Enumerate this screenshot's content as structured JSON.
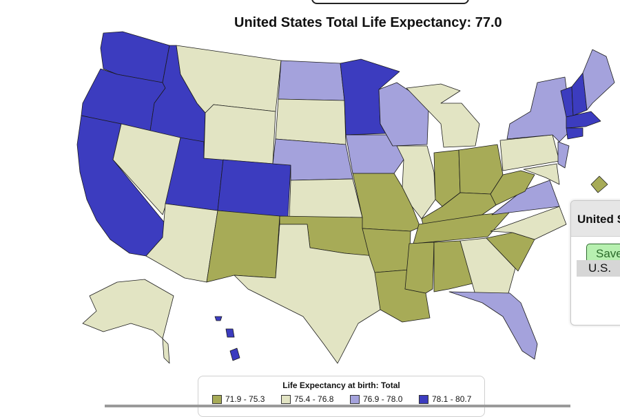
{
  "title": "United States Total Life Expectancy: 77.0",
  "colors": {
    "bin1": "#a7ab57",
    "bin2": "#e2e4c3",
    "bin3": "#a4a2dc",
    "bin4": "#3c3cbf"
  },
  "legend": {
    "title": "Life Expectancy at birth: Total",
    "items": [
      {
        "label": "71.9 - 75.3",
        "color": "#a7ab57"
      },
      {
        "label": "75.4 - 76.8",
        "color": "#e2e4c3"
      },
      {
        "label": "76.9 - 78.0",
        "color": "#a4a2dc"
      },
      {
        "label": "78.1 - 80.7",
        "color": "#3c3cbf"
      }
    ]
  },
  "popup": {
    "header": "United S",
    "save_label": "Save",
    "row_label": "U.S."
  }
}
